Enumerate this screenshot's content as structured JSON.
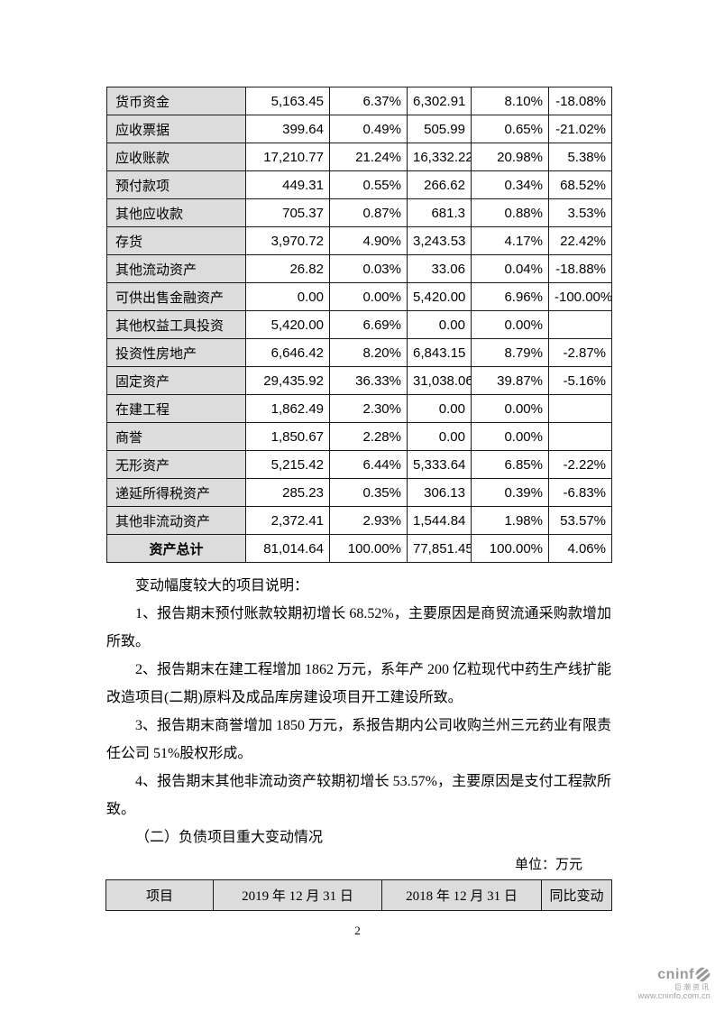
{
  "asset_table": {
    "rows": [
      [
        "货币资金",
        "5,163.45",
        "6.37%",
        "6,302.91",
        "8.10%",
        "-18.08%"
      ],
      [
        "应收票据",
        "399.64",
        "0.49%",
        "505.99",
        "0.65%",
        "-21.02%"
      ],
      [
        "应收账款",
        "17,210.77",
        "21.24%",
        "16,332.22",
        "20.98%",
        "5.38%"
      ],
      [
        "预付款项",
        "449.31",
        "0.55%",
        "266.62",
        "0.34%",
        "68.52%"
      ],
      [
        "其他应收款",
        "705.37",
        "0.87%",
        "681.3",
        "0.88%",
        "3.53%"
      ],
      [
        "存货",
        "3,970.72",
        "4.90%",
        "3,243.53",
        "4.17%",
        "22.42%"
      ],
      [
        "其他流动资产",
        "26.82",
        "0.03%",
        "33.06",
        "0.04%",
        "-18.88%"
      ],
      [
        "可供出售金融资产",
        "0.00",
        "0.00%",
        "5,420.00",
        "6.96%",
        "-100.00%"
      ],
      [
        "其他权益工具投资",
        "5,420.00",
        "6.69%",
        "0.00",
        "0.00%",
        ""
      ],
      [
        "投资性房地产",
        "6,646.42",
        "8.20%",
        "6,843.15",
        "8.79%",
        "-2.87%"
      ],
      [
        "固定资产",
        "29,435.92",
        "36.33%",
        "31,038.06",
        "39.87%",
        "-5.16%"
      ],
      [
        "在建工程",
        "1,862.49",
        "2.30%",
        "0.00",
        "0.00%",
        ""
      ],
      [
        "商誉",
        "1,850.67",
        "2.28%",
        "0.00",
        "0.00%",
        ""
      ],
      [
        "无形资产",
        "5,215.42",
        "6.44%",
        "5,333.64",
        "6.85%",
        "-2.22%"
      ],
      [
        "递延所得税资产",
        "285.23",
        "0.35%",
        "306.13",
        "0.39%",
        "-6.83%"
      ],
      [
        "其他非流动资产",
        "2,372.41",
        "2.93%",
        "1,544.84",
        "1.98%",
        "53.57%"
      ]
    ],
    "total_row": [
      "资产总计",
      "81,014.64",
      "100.00%",
      "77,851.45",
      "100.00%",
      "4.06%"
    ]
  },
  "notes": {
    "intro": "变动幅度较大的项目说明：",
    "items": [
      "1、报告期末预付账款较期初增长 68.52%，主要原因是商贸流通采购款增加所致。",
      "2、报告期末在建工程增加 1862 万元，系年产 200 亿粒现代中药生产线扩能改造项目(二期)原料及成品库房建设项目开工建设所致。",
      "3、报告期末商誉增加 1850 万元，系报告期内公司收购兰州三元药业有限责任公司 51%股权形成。",
      "4、报告期末其他非流动资产较期初增长 53.57%，主要原因是支付工程款所致。"
    ],
    "section_heading": "（二）负债项目重大变动情况"
  },
  "liability_table": {
    "unit_label": "单位：万元",
    "headers": [
      "项目",
      "2019 年 12 月 31 日",
      "2018 年 12 月 31 日",
      "同比变动"
    ]
  },
  "footer": {
    "page_number": "2",
    "logo_brand": "cninf",
    "logo_name": "巨潮资讯",
    "logo_url": "www.cninfo.com.cn"
  }
}
